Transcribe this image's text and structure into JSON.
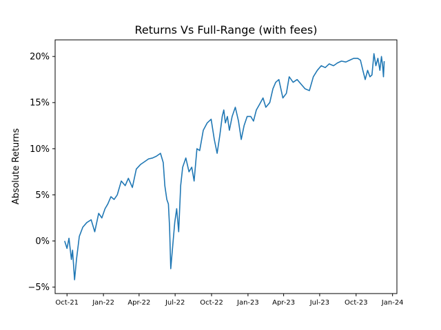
{
  "chart_data": {
    "type": "line",
    "title": "Returns Vs Full-Range (with fees)",
    "xlabel": "",
    "ylabel": "Absolute Returns",
    "x_ticks": [
      "Oct-21",
      "Jan-22",
      "Apr-22",
      "Jul-22",
      "Oct-22",
      "Jan-23",
      "Apr-23",
      "Jul-23",
      "Oct-23",
      "Jan-24"
    ],
    "y_ticks": [
      "−5%",
      "0%",
      "5%",
      "10%",
      "15%",
      "20%"
    ],
    "y_tick_values": [
      -5,
      0,
      5,
      10,
      15,
      20
    ],
    "ylim": [
      -5.7,
      21.8
    ],
    "xlim": [
      "2021-09-01",
      "2024-01-12"
    ],
    "grid": false,
    "line_color": "#1f77b4",
    "series": [
      {
        "x": [
          "2021-09-25",
          "2021-10-01",
          "2021-10-06",
          "2021-10-12",
          "2021-10-15",
          "2021-10-20",
          "2021-10-25",
          "2021-11-01",
          "2021-11-10",
          "2021-11-20",
          "2021-12-01",
          "2021-12-10",
          "2021-12-20",
          "2021-12-28",
          "2022-01-05",
          "2022-01-12",
          "2022-01-20",
          "2022-01-28",
          "2022-02-05",
          "2022-02-15",
          "2022-02-25",
          "2022-03-05",
          "2022-03-15",
          "2022-03-25",
          "2022-04-05",
          "2022-04-15",
          "2022-04-25",
          "2022-05-05",
          "2022-05-15",
          "2022-05-25",
          "2022-06-01",
          "2022-06-05",
          "2022-06-10",
          "2022-06-14",
          "2022-06-17",
          "2022-06-20",
          "2022-06-25",
          "2022-06-30",
          "2022-07-05",
          "2022-07-10",
          "2022-07-15",
          "2022-07-20",
          "2022-07-28",
          "2022-08-05",
          "2022-08-12",
          "2022-08-18",
          "2022-08-25",
          "2022-09-01",
          "2022-09-10",
          "2022-09-20",
          "2022-09-30",
          "2022-10-08",
          "2022-10-15",
          "2022-10-22",
          "2022-10-28",
          "2022-11-01",
          "2022-11-05",
          "2022-11-10",
          "2022-11-15",
          "2022-11-22",
          "2022-11-30",
          "2022-12-08",
          "2022-12-15",
          "2022-12-22",
          "2022-12-30",
          "2023-01-08",
          "2023-01-15",
          "2023-01-22",
          "2023-01-30",
          "2023-02-08",
          "2023-02-15",
          "2023-02-25",
          "2023-03-05",
          "2023-03-12",
          "2023-03-20",
          "2023-03-30",
          "2023-04-08",
          "2023-04-15",
          "2023-04-25",
          "2023-05-05",
          "2023-05-15",
          "2023-05-25",
          "2023-06-05",
          "2023-06-15",
          "2023-06-25",
          "2023-07-05",
          "2023-07-15",
          "2023-07-25",
          "2023-08-05",
          "2023-08-15",
          "2023-08-25",
          "2023-09-05",
          "2023-09-15",
          "2023-09-25",
          "2023-10-05",
          "2023-10-12",
          "2023-10-18",
          "2023-10-24",
          "2023-10-30",
          "2023-11-05",
          "2023-11-10",
          "2023-11-15",
          "2023-11-20",
          "2023-11-25",
          "2023-11-30",
          "2023-12-04",
          "2023-12-07",
          "2023-12-09",
          "2023-12-11"
        ],
        "values": [
          0.0,
          -0.8,
          0.3,
          -2.0,
          -1.0,
          -4.2,
          -2.0,
          0.5,
          1.5,
          2.0,
          2.3,
          1.0,
          3.0,
          2.5,
          3.5,
          4.0,
          4.8,
          4.5,
          5.0,
          6.5,
          6.0,
          6.8,
          5.8,
          7.8,
          8.3,
          8.6,
          8.9,
          9.0,
          9.2,
          9.5,
          8.5,
          6.0,
          4.5,
          4.0,
          1.5,
          -3.0,
          -0.5,
          2.0,
          3.5,
          1.0,
          6.0,
          8.0,
          9.0,
          7.5,
          8.0,
          6.5,
          10.0,
          9.8,
          12.0,
          12.8,
          13.2,
          11.0,
          9.5,
          11.5,
          13.5,
          14.2,
          12.8,
          13.5,
          12.0,
          13.5,
          14.5,
          13.0,
          11.0,
          12.5,
          13.5,
          13.5,
          13.0,
          14.2,
          14.8,
          15.5,
          14.5,
          15.0,
          16.5,
          17.2,
          17.5,
          15.5,
          16.0,
          17.8,
          17.2,
          17.5,
          17.0,
          16.5,
          16.3,
          17.8,
          18.5,
          19.0,
          18.8,
          19.2,
          19.0,
          19.3,
          19.5,
          19.4,
          19.6,
          19.8,
          19.8,
          19.6,
          18.5,
          17.5,
          18.5,
          17.8,
          18.0,
          20.3,
          19.0,
          19.8,
          18.5,
          20.0,
          19.0,
          17.8,
          19.5
        ]
      }
    ]
  }
}
